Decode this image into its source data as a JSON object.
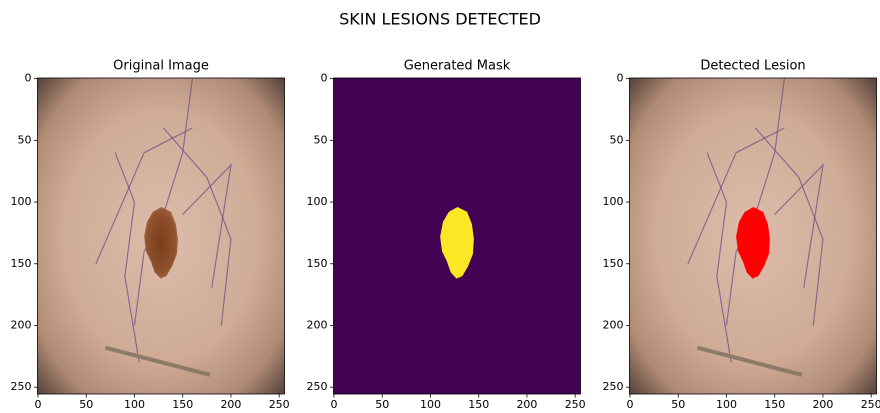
{
  "title": "SKIN LESIONS DETECTED",
  "chart_data": [
    {
      "type": "image",
      "title": "Original Image",
      "xlim": [
        -0.5,
        255.5
      ],
      "ylim": [
        255.5,
        -0.5
      ],
      "xticks": [
        0,
        50,
        100,
        150,
        200,
        250
      ],
      "yticks": [
        0,
        50,
        100,
        150,
        200,
        250
      ]
    },
    {
      "type": "image",
      "title": "Generated Mask",
      "xlim": [
        -0.5,
        255.5
      ],
      "ylim": [
        255.5,
        -0.5
      ],
      "xticks": [
        0,
        50,
        100,
        150,
        200,
        250
      ],
      "yticks": [
        0,
        50,
        100,
        150,
        200,
        250
      ]
    },
    {
      "type": "image",
      "title": "Detected Lesion",
      "xlim": [
        -0.5,
        255.5
      ],
      "ylim": [
        255.5,
        -0.5
      ],
      "xticks": [
        0,
        50,
        100,
        150,
        200,
        250
      ],
      "yticks": [
        0,
        50,
        100,
        150,
        200,
        250
      ]
    }
  ]
}
